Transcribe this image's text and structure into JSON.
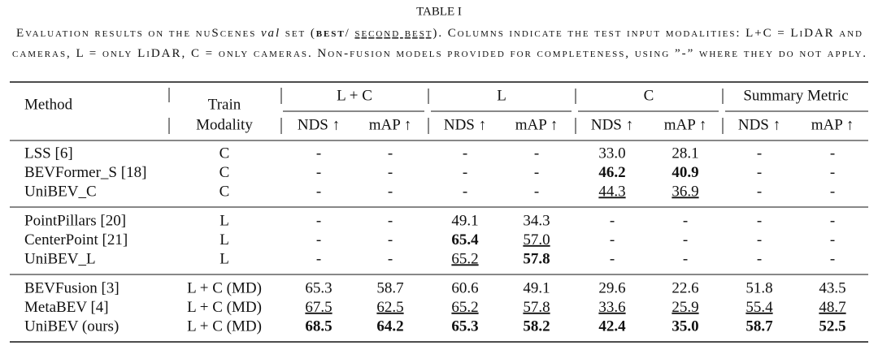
{
  "title": "TABLE I",
  "caption": [
    [
      {
        "text": "Evaluation results on the nuScenes "
      },
      {
        "text": "val",
        "style": "italic"
      },
      {
        "text": " set ("
      },
      {
        "text": "best",
        "style": "bold"
      },
      {
        "text": "/ "
      },
      {
        "text": "second best",
        "style": "underline"
      },
      {
        "text": "). Columns indicate the test input modalities: L+C = LiDAR and"
      }
    ],
    [
      {
        "text": "cameras, L = only LiDAR, C = only cameras. Non-fusion models provided for completeness, using ”-” where they do not apply."
      }
    ]
  ],
  "table": {
    "header": {
      "method": "Method",
      "modality": [
        "Train",
        "Modality"
      ],
      "groups": [
        "L + C",
        "L",
        "C",
        "Summary Metric"
      ],
      "metrics": [
        "NDS ↑",
        "mAP ↑"
      ]
    },
    "sections": [
      [
        {
          "method": "LSS [6]",
          "modality": "C",
          "cells": [
            "-",
            "-",
            "-",
            "-",
            "33.0",
            "28.1",
            "-",
            "-"
          ]
        },
        {
          "method": "BEVFormer_S [18]",
          "modality": "C",
          "cells": [
            "-",
            "-",
            "-",
            "-",
            {
              "text": "46.2",
              "emphasis": "bold"
            },
            {
              "text": "40.9",
              "emphasis": "bold"
            },
            "-",
            "-"
          ]
        },
        {
          "method": "UniBEV_C",
          "modality": "C",
          "cells": [
            "-",
            "-",
            "-",
            "-",
            {
              "text": "44.3",
              "emphasis": "underline"
            },
            {
              "text": "36.9",
              "emphasis": "underline"
            },
            "-",
            "-"
          ]
        }
      ],
      [
        {
          "method": "PointPillars [20]",
          "modality": "L",
          "cells": [
            "-",
            "-",
            "49.1",
            "34.3",
            "-",
            "-",
            "-",
            "-"
          ]
        },
        {
          "method": "CenterPoint [21]",
          "modality": "L",
          "cells": [
            "-",
            "-",
            {
              "text": "65.4",
              "emphasis": "bold"
            },
            {
              "text": "57.0",
              "emphasis": "underline"
            },
            "-",
            "-",
            "-",
            "-"
          ]
        },
        {
          "method": "UniBEV_L",
          "modality": "L",
          "cells": [
            "-",
            "-",
            {
              "text": "65.2",
              "emphasis": "underline"
            },
            {
              "text": "57.8",
              "emphasis": "bold"
            },
            "-",
            "-",
            "-",
            "-"
          ]
        }
      ],
      [
        {
          "method": "BEVFusion [3]",
          "modality": "L + C (MD)",
          "cells": [
            "65.3",
            "58.7",
            "60.6",
            "49.1",
            "29.6",
            "22.6",
            "51.8",
            "43.5"
          ]
        },
        {
          "method": "MetaBEV [4]",
          "modality": "L + C (MD)",
          "cells": [
            {
              "text": "67.5",
              "emphasis": "underline"
            },
            {
              "text": "62.5",
              "emphasis": "underline"
            },
            {
              "text": "65.2",
              "emphasis": "underline"
            },
            {
              "text": "57.8",
              "emphasis": "underline"
            },
            {
              "text": "33.6",
              "emphasis": "underline"
            },
            {
              "text": "25.9",
              "emphasis": "underline"
            },
            {
              "text": "55.4",
              "emphasis": "underline"
            },
            {
              "text": "48.7",
              "emphasis": "underline"
            }
          ]
        },
        {
          "method": "UniBEV (ours)",
          "modality": "L + C (MD)",
          "cells": [
            {
              "text": "68.5",
              "emphasis": "bold"
            },
            {
              "text": "64.2",
              "emphasis": "bold"
            },
            {
              "text": "65.3",
              "emphasis": "bold"
            },
            {
              "text": "58.2",
              "emphasis": "bold"
            },
            {
              "text": "42.4",
              "emphasis": "bold"
            },
            {
              "text": "35.0",
              "emphasis": "bold"
            },
            {
              "text": "58.7",
              "emphasis": "bold"
            },
            {
              "text": "52.5",
              "emphasis": "bold"
            }
          ]
        }
      ]
    ]
  }
}
